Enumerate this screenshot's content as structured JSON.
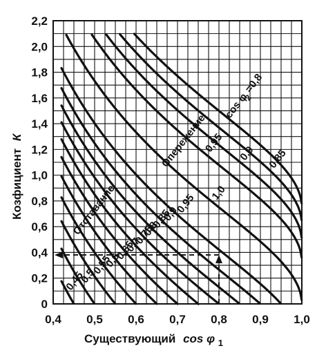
{
  "chart_data": {
    "type": "line",
    "xlabel": "Существующий",
    "xlabel_symbol": "cos φ",
    "xlabel_subscript": "1",
    "ylabel": "Козфициент",
    "ylabel_symbol": "К",
    "xlim": [
      0.4,
      1.0
    ],
    "ylim": [
      0,
      2.2
    ],
    "x_ticks": [
      "0,4",
      "0,5",
      "0,6",
      "0,7",
      "0,8",
      "0,9",
      "1,0"
    ],
    "x_tick_values": [
      0.4,
      0.5,
      0.6,
      0.7,
      0.8,
      0.9,
      1.0
    ],
    "y_ticks": [
      "0",
      "0,2",
      "0,4",
      "0,6",
      "0,8",
      "1,0",
      "1,2",
      "1,4",
      "1,6",
      "1,8",
      "2,0",
      "2,2"
    ],
    "y_tick_values": [
      0,
      0.2,
      0.4,
      0.6,
      0.8,
      1.0,
      1.2,
      1.4,
      1.6,
      1.8,
      2.0,
      2.2
    ],
    "grid": true,
    "group_labels": {
      "lagging": "Отставание",
      "leading": "Опережение",
      "target_symbol": "cos φ",
      "target_subscript": "2",
      "target_value": "=0,8"
    },
    "lagging_label_texts": [
      "0,45",
      "0,5",
      "0,55",
      "0,6",
      "0,65",
      "0,7",
      "0,75",
      "0,8",
      "0,85",
      "0,9",
      "0,95"
    ],
    "leading_label_texts": [
      "0,95",
      "0,9",
      "0,85"
    ],
    "unity_label_text": "1,0",
    "series": [
      {
        "name": "0,45",
        "mode": "lagging",
        "cos2": 0.45
      },
      {
        "name": "0,5",
        "mode": "lagging",
        "cos2": 0.5
      },
      {
        "name": "0,55",
        "mode": "lagging",
        "cos2": 0.55
      },
      {
        "name": "0,6",
        "mode": "lagging",
        "cos2": 0.6
      },
      {
        "name": "0,65",
        "mode": "lagging",
        "cos2": 0.65
      },
      {
        "name": "0,7",
        "mode": "lagging",
        "cos2": 0.7
      },
      {
        "name": "0,75",
        "mode": "lagging",
        "cos2": 0.75
      },
      {
        "name": "0,8",
        "mode": "lagging",
        "cos2": 0.8
      },
      {
        "name": "0,85",
        "mode": "lagging",
        "cos2": 0.85
      },
      {
        "name": "0,9",
        "mode": "lagging",
        "cos2": 0.9
      },
      {
        "name": "0,95",
        "mode": "lagging",
        "cos2": 0.95
      },
      {
        "name": "1,0",
        "mode": "unity",
        "cos2": 1.0
      },
      {
        "name": "0,95",
        "mode": "leading",
        "cos2": 0.95
      },
      {
        "name": "0,9",
        "mode": "leading",
        "cos2": 0.9
      },
      {
        "name": "0,85",
        "mode": "leading",
        "cos2": 0.85
      },
      {
        "name": "0,8",
        "mode": "leading",
        "cos2": 0.8
      }
    ],
    "example": {
      "cos1": 0.8,
      "cos2": 0.9,
      "k": 0.38
    }
  }
}
